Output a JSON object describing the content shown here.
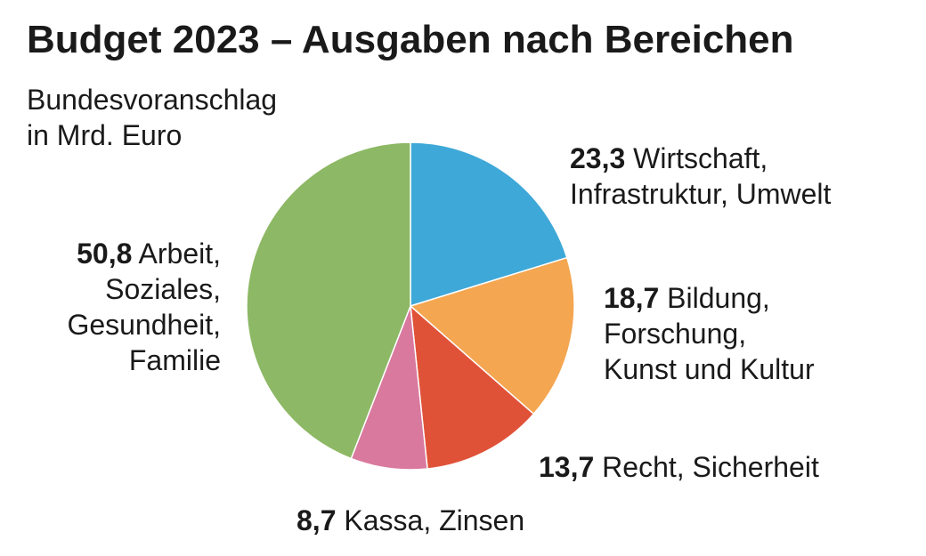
{
  "chart_data": {
    "type": "pie",
    "title": "Budget 2023 – Ausgaben nach Bereichen",
    "subtitle": "Bundesvoranschlag\nin Mrd. Euro",
    "categories": [
      "Wirtschaft,\nInfrastruktur, Umwelt",
      "Bildung,\nForschung,\nKunst und Kultur",
      "Recht, Sicherheit",
      "Kassa, Zinsen",
      "Arbeit,\nSoziales,\nGesundheit,\nFamilie"
    ],
    "values": [
      23.3,
      18.7,
      13.7,
      8.7,
      50.8
    ],
    "value_labels": [
      "23,3",
      "18,7",
      "13,7",
      "8,7",
      "50,8"
    ],
    "colors": [
      "#3ea8d8",
      "#f4a651",
      "#e05238",
      "#d9799e",
      "#8db865"
    ]
  }
}
